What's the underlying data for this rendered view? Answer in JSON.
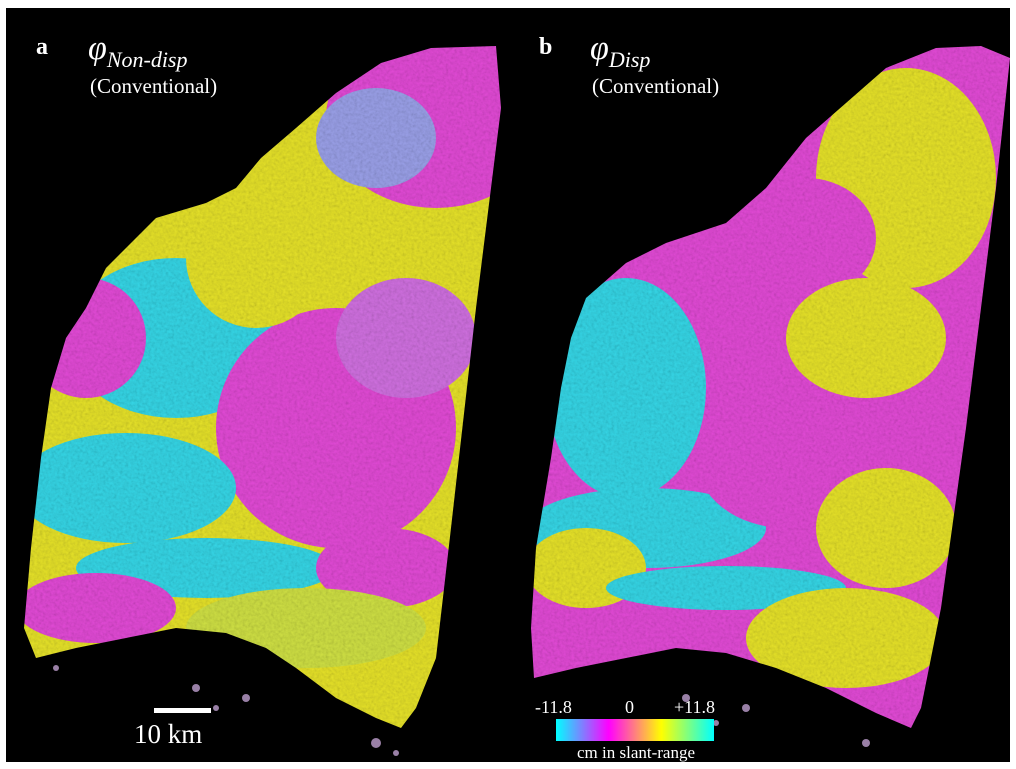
{
  "panels": [
    {
      "letter": "a",
      "phase_symbol": "φ",
      "subscript": "Non-disp",
      "caption": "(Conventional)"
    },
    {
      "letter": "b",
      "phase_symbol": "φ",
      "subscript": "Disp",
      "caption": "(Conventional)"
    }
  ],
  "scalebar": {
    "label": "10 km"
  },
  "colorbar": {
    "min_label": "-11.8",
    "mid_label": "0",
    "max_label": "+11.8",
    "unit": "cm in slant-range",
    "colors": [
      "#00ffff",
      "#ff00ff",
      "#ffff00",
      "#00ffff"
    ]
  },
  "colors": {
    "cyan": "#35d6e6",
    "magenta": "#e24ad6",
    "yellow": "#e6e22a",
    "background": "#000000"
  }
}
